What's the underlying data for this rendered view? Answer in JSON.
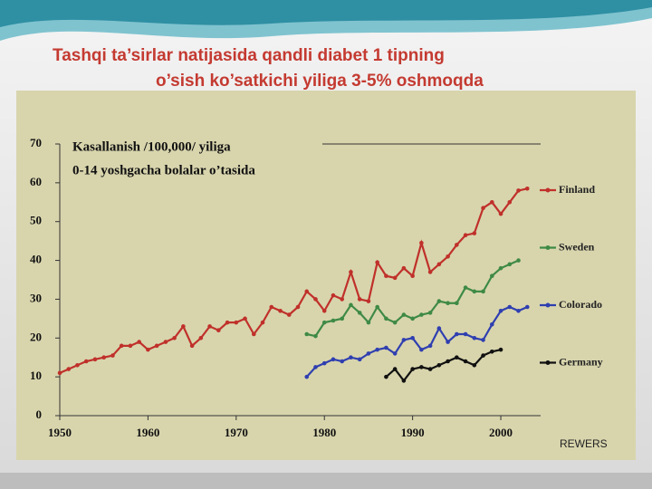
{
  "chart_data": {
    "type": "line",
    "title": [
      "Tashqi ta’sirlar natijasida qandli diabet 1 tipning",
      "o’sish ko’satkichi yiliga 3-5% oshmoqda"
    ],
    "annotation": [
      "Kasallanish  /100,000/  yiliga",
      "0-14 yoshgacha bolalar  o’tasida"
    ],
    "source": "REWERS",
    "x": [
      1950,
      1951,
      1952,
      1953,
      1954,
      1955,
      1956,
      1957,
      1958,
      1959,
      1960,
      1961,
      1962,
      1963,
      1964,
      1965,
      1966,
      1967,
      1968,
      1969,
      1970,
      1971,
      1972,
      1973,
      1974,
      1975,
      1976,
      1977,
      1978,
      1979,
      1980,
      1981,
      1982,
      1983,
      1984,
      1985,
      1986,
      1987,
      1988,
      1989,
      1990,
      1991,
      1992,
      1993,
      1994,
      1995,
      1996,
      1997,
      1998,
      1999,
      2000,
      2001,
      2002,
      2003
    ],
    "series": [
      {
        "name": "Finland",
        "color": "#c0302a",
        "values": [
          11,
          12,
          13,
          14,
          14.5,
          15,
          15.5,
          18,
          18,
          19,
          17,
          18,
          19,
          20,
          23,
          18,
          20,
          23,
          22,
          24,
          24,
          25,
          21,
          24,
          28,
          27,
          26,
          28,
          32,
          30,
          27,
          31,
          30,
          37,
          30,
          29.5,
          39.5,
          36,
          35.5,
          38,
          36,
          44.5,
          37,
          39,
          41,
          44,
          46.5,
          47,
          53.5,
          55,
          52,
          55,
          58,
          58.5
        ]
      },
      {
        "name": "Sweden",
        "color": "#3f8a45",
        "values": [
          null,
          null,
          null,
          null,
          null,
          null,
          null,
          null,
          null,
          null,
          null,
          null,
          null,
          null,
          null,
          null,
          null,
          null,
          null,
          null,
          null,
          null,
          null,
          null,
          null,
          null,
          null,
          null,
          21,
          20.5,
          24,
          24.5,
          25,
          28.5,
          26.5,
          24,
          28,
          25,
          24,
          26,
          25,
          26,
          26.5,
          29.5,
          29,
          29,
          33,
          32,
          32,
          36,
          38,
          39,
          40,
          null
        ]
      },
      {
        "name": "Colorado",
        "color": "#2f3fb0",
        "values": [
          null,
          null,
          null,
          null,
          null,
          null,
          null,
          null,
          null,
          null,
          null,
          null,
          null,
          null,
          null,
          null,
          null,
          null,
          null,
          null,
          null,
          null,
          null,
          null,
          null,
          null,
          null,
          null,
          10,
          12.5,
          13.5,
          14.5,
          14,
          15,
          14.5,
          16,
          17,
          17.5,
          16,
          19.5,
          20,
          17,
          18,
          22.5,
          19,
          21,
          21,
          20,
          19.5,
          23.5,
          27,
          28,
          27,
          28
        ]
      },
      {
        "name": "Germany",
        "color": "#111111",
        "values": [
          null,
          null,
          null,
          null,
          null,
          null,
          null,
          null,
          null,
          null,
          null,
          null,
          null,
          null,
          null,
          null,
          null,
          null,
          null,
          null,
          null,
          null,
          null,
          null,
          null,
          null,
          null,
          null,
          null,
          null,
          null,
          null,
          null,
          null,
          null,
          null,
          null,
          10,
          12,
          9,
          12,
          12.5,
          12,
          13,
          14,
          15,
          14,
          13,
          15.5,
          16.5,
          17,
          null,
          null,
          null
        ]
      }
    ],
    "xlim": [
      1950,
      2004
    ],
    "xticks": [
      1950,
      1960,
      1970,
      1980,
      1990,
      2000
    ],
    "ylim": [
      0,
      70
    ],
    "yticks": [
      0,
      10,
      20,
      30,
      40,
      50,
      60,
      70
    ],
    "legend": "right"
  }
}
